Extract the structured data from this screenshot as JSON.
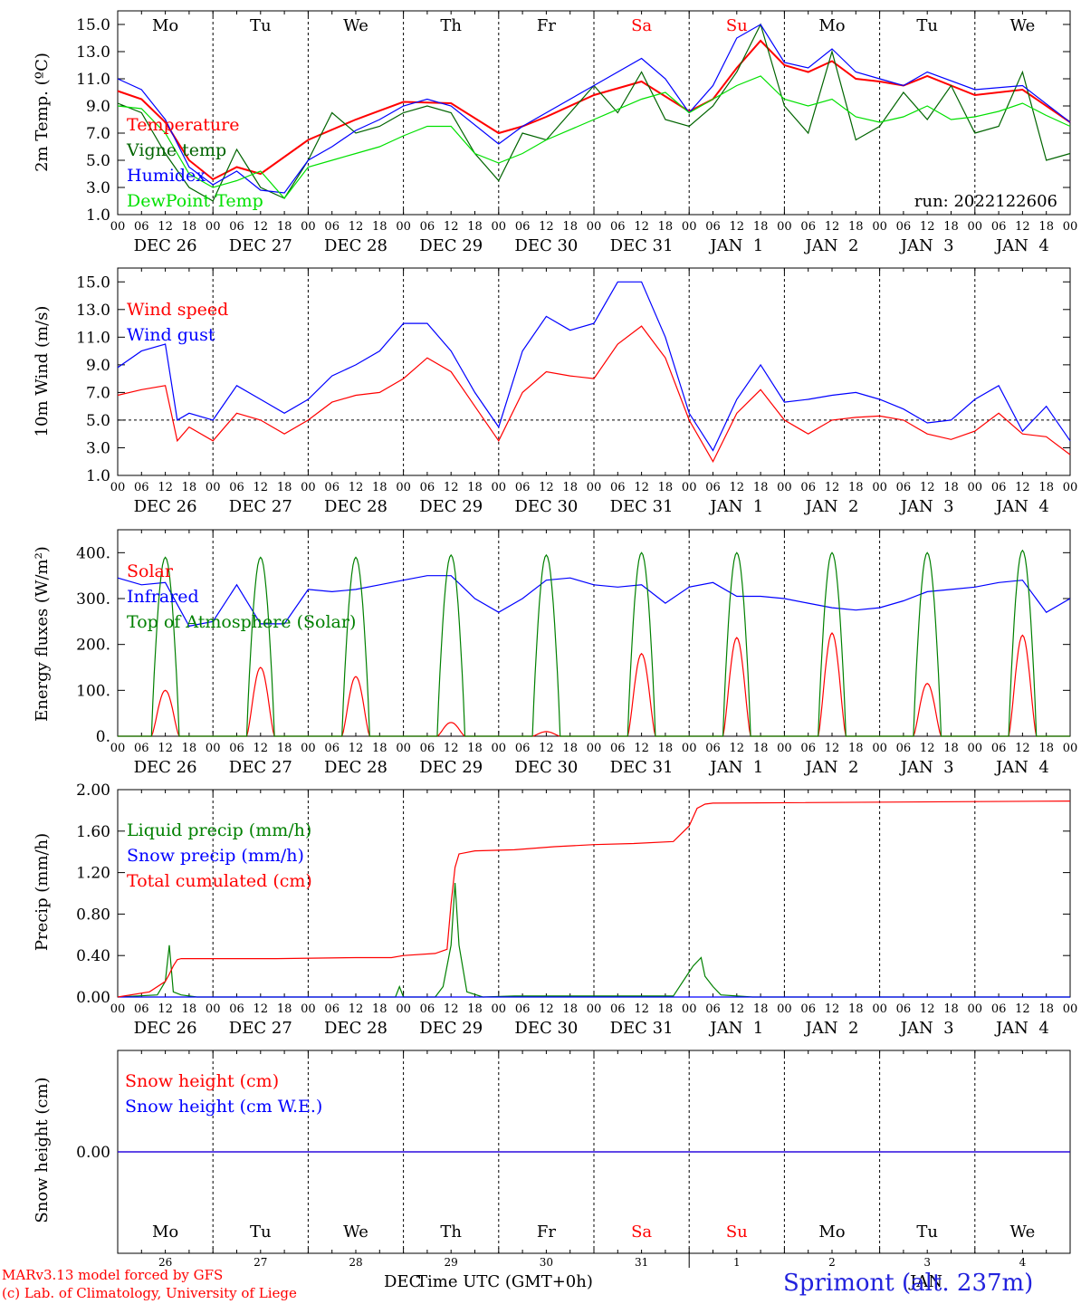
{
  "days": {
    "weekday_labels": [
      "Mo",
      "Tu",
      "We",
      "Th",
      "Fr",
      "Sa",
      "Su",
      "Mo",
      "Tu",
      "We"
    ],
    "weekend_color": "#ff0000",
    "weekday_color": "#000000",
    "date_labels": [
      "DEC 26",
      "DEC 27",
      "DEC 28",
      "DEC 29",
      "DEC 30",
      "DEC 31",
      "JAN  1",
      "JAN  2",
      "JAN  3",
      "JAN  4"
    ],
    "hour_labels": [
      "00",
      "06",
      "12",
      "18"
    ],
    "final_hour_label": "00",
    "snow_panel_day_numbers": [
      "26",
      "27",
      "28",
      "29",
      "30",
      "31",
      "1",
      "2",
      "3",
      "4"
    ]
  },
  "chart_data": [
    {
      "type": "line",
      "id": "temperature",
      "ylabel": "2m Temp. (ºC)",
      "ylim": [
        1.0,
        16.0
      ],
      "yticks": [
        "1.0",
        "3.0",
        "5.0",
        "7.0",
        "9.0",
        "11.0",
        "13.0",
        "15.0"
      ],
      "run_label": "run: 2022122606",
      "x_unit": "hours since DEC 26 00 UTC",
      "series": [
        {
          "name": "Temperature",
          "color": "#ff0000",
          "x": [
            0,
            6,
            12,
            18,
            24,
            30,
            36,
            48,
            60,
            72,
            84,
            96,
            102,
            108,
            120,
            132,
            144,
            150,
            156,
            162,
            168,
            174,
            180,
            186,
            192,
            198,
            204,
            216,
            228,
            240
          ],
          "values": [
            10.1,
            9.5,
            7.8,
            5.0,
            3.6,
            4.5,
            4.0,
            6.5,
            8.0,
            9.3,
            9.2,
            7.0,
            7.5,
            8.2,
            9.8,
            10.8,
            8.6,
            9.5,
            11.8,
            13.8,
            12.0,
            11.5,
            12.3,
            11.0,
            10.8,
            10.5,
            11.2,
            9.8,
            10.2,
            7.8
          ]
        },
        {
          "name": "Vigne temp",
          "color": "#006400",
          "x": [
            0,
            6,
            12,
            18,
            24,
            30,
            36,
            42,
            48,
            54,
            60,
            66,
            72,
            78,
            84,
            90,
            96,
            102,
            108,
            114,
            120,
            126,
            132,
            138,
            144,
            150,
            156,
            162,
            168,
            174,
            180,
            186,
            192,
            198,
            204,
            210,
            216,
            222,
            228,
            234,
            240
          ],
          "values": [
            9.2,
            8.5,
            5.5,
            3.0,
            2.0,
            5.8,
            3.0,
            2.2,
            5.0,
            8.5,
            7.0,
            7.5,
            8.5,
            9.0,
            8.5,
            5.5,
            3.5,
            7.0,
            6.5,
            8.5,
            10.5,
            8.5,
            11.5,
            8.0,
            7.5,
            9.0,
            11.5,
            15.0,
            9.0,
            7.0,
            13.0,
            6.5,
            7.5,
            10.0,
            8.0,
            10.5,
            7.0,
            7.5,
            11.5,
            5.0,
            5.5
          ]
        },
        {
          "name": "Humidex",
          "color": "#0000ff",
          "x": [
            0,
            6,
            12,
            18,
            24,
            30,
            36,
            42,
            48,
            54,
            60,
            66,
            72,
            78,
            84,
            96,
            102,
            108,
            120,
            132,
            138,
            144,
            150,
            156,
            162,
            168,
            174,
            180,
            186,
            192,
            198,
            204,
            216,
            228,
            240
          ],
          "values": [
            11.0,
            10.2,
            8.0,
            4.5,
            3.2,
            4.2,
            2.8,
            2.6,
            5.0,
            6.0,
            7.2,
            8.0,
            9.0,
            9.5,
            9.0,
            6.2,
            7.5,
            8.5,
            10.5,
            12.5,
            11.0,
            8.5,
            10.5,
            14.0,
            15.0,
            12.2,
            11.8,
            13.2,
            11.5,
            11.0,
            10.5,
            11.5,
            10.2,
            10.5,
            7.8
          ]
        },
        {
          "name": "DewPoint Temp",
          "color": "#00e000",
          "x": [
            0,
            6,
            12,
            18,
            24,
            30,
            36,
            42,
            48,
            54,
            60,
            66,
            72,
            78,
            84,
            90,
            96,
            102,
            108,
            120,
            132,
            138,
            144,
            150,
            156,
            162,
            168,
            174,
            180,
            186,
            192,
            198,
            204,
            210,
            216,
            222,
            228,
            234,
            240
          ],
          "values": [
            9.0,
            8.8,
            7.0,
            4.0,
            3.0,
            3.5,
            4.2,
            2.2,
            4.5,
            5.0,
            5.5,
            6.0,
            6.8,
            7.5,
            7.5,
            5.5,
            4.8,
            5.5,
            6.5,
            8.0,
            9.5,
            10.0,
            8.5,
            9.5,
            10.5,
            11.2,
            9.5,
            9.0,
            9.5,
            8.2,
            7.8,
            8.2,
            9.0,
            8.0,
            8.2,
            8.6,
            9.2,
            8.3,
            7.5
          ]
        }
      ]
    },
    {
      "type": "line",
      "id": "wind",
      "ylabel": "10m Wind (m/s)",
      "ylim": [
        1.0,
        16.0
      ],
      "yticks": [
        "1.0",
        "3.0",
        "5.0",
        "7.0",
        "9.0",
        "11.0",
        "13.0",
        "15.0"
      ],
      "reference_line": 5.0,
      "x_unit": "hours since DEC 26 00 UTC",
      "series": [
        {
          "name": "Wind speed",
          "color": "#ff0000",
          "x": [
            0,
            6,
            12,
            15,
            18,
            24,
            30,
            36,
            42,
            48,
            54,
            60,
            66,
            72,
            78,
            84,
            90,
            96,
            102,
            108,
            114,
            120,
            126,
            132,
            138,
            144,
            150,
            156,
            162,
            168,
            174,
            180,
            186,
            192,
            198,
            204,
            210,
            216,
            222,
            228,
            234,
            240
          ],
          "values": [
            6.8,
            7.2,
            7.5,
            3.5,
            4.5,
            3.5,
            5.5,
            5.0,
            4.0,
            5.0,
            6.3,
            6.8,
            7.0,
            8.0,
            9.5,
            8.5,
            6.0,
            3.5,
            7.0,
            8.5,
            8.2,
            8.0,
            10.5,
            11.8,
            9.5,
            5.0,
            2.0,
            5.5,
            7.2,
            5.0,
            4.0,
            5.0,
            5.2,
            5.3,
            5.0,
            4.0,
            3.6,
            4.2,
            5.5,
            4.0,
            3.8,
            2.5
          ]
        },
        {
          "name": "Wind gust",
          "color": "#0000ff",
          "x": [
            0,
            6,
            12,
            15,
            18,
            24,
            30,
            36,
            42,
            48,
            54,
            60,
            66,
            72,
            78,
            84,
            90,
            96,
            102,
            108,
            114,
            120,
            126,
            132,
            138,
            144,
            150,
            156,
            162,
            168,
            174,
            180,
            186,
            192,
            198,
            204,
            210,
            216,
            222,
            228,
            234,
            240
          ],
          "values": [
            8.8,
            10.0,
            10.5,
            5.0,
            5.5,
            5.0,
            7.5,
            6.5,
            5.5,
            6.5,
            8.2,
            9.0,
            10.0,
            12.0,
            12.0,
            10.0,
            7.0,
            4.5,
            10.0,
            12.5,
            11.5,
            12.0,
            15.0,
            15.0,
            11.0,
            5.5,
            2.8,
            6.5,
            9.0,
            6.3,
            6.5,
            6.8,
            7.0,
            6.5,
            5.8,
            4.8,
            5.0,
            6.5,
            7.5,
            4.2,
            6.0,
            3.5
          ]
        }
      ]
    },
    {
      "type": "line",
      "id": "energy",
      "ylabel": "Energy fluxes (W/m²)",
      "ylim": [
        0,
        450
      ],
      "yticks": [
        "0.",
        "100.",
        "200.",
        "300.",
        "400."
      ],
      "x_unit": "hours since DEC 26 00 UTC",
      "daylight_window_hours": [
        8.5,
        15.5
      ],
      "series": [
        {
          "name": "Solar",
          "color": "#ff0000",
          "daily_peak": [
            100,
            150,
            130,
            30,
            10,
            180,
            215,
            225,
            115,
            220
          ]
        },
        {
          "name": "Infrared",
          "color": "#0000ff",
          "x": [
            0,
            6,
            12,
            18,
            24,
            30,
            36,
            42,
            48,
            54,
            60,
            66,
            72,
            78,
            84,
            90,
            96,
            102,
            108,
            114,
            120,
            126,
            132,
            138,
            144,
            150,
            156,
            162,
            168,
            174,
            180,
            186,
            192,
            198,
            204,
            210,
            216,
            222,
            228,
            234,
            240
          ],
          "values": [
            345,
            330,
            335,
            240,
            250,
            330,
            245,
            245,
            320,
            315,
            320,
            330,
            340,
            350,
            350,
            300,
            270,
            300,
            340,
            345,
            330,
            325,
            330,
            290,
            325,
            335,
            305,
            305,
            300,
            290,
            280,
            275,
            280,
            295,
            315,
            320,
            325,
            335,
            340,
            270,
            300
          ]
        },
        {
          "name": "Top of Atmosphere (Solar)",
          "color": "#008000",
          "daily_peak": [
            390,
            390,
            390,
            395,
            395,
            400,
            400,
            400,
            400,
            405
          ]
        }
      ]
    },
    {
      "type": "line",
      "id": "precip",
      "ylabel": "Precip (mm/h)",
      "ylim": [
        0.0,
        2.0
      ],
      "yticks": [
        "0.00",
        "0.40",
        "0.80",
        "1.20",
        "1.60",
        "2.00"
      ],
      "x_unit": "hours since DEC 26 00 UTC",
      "series": [
        {
          "name": "Liquid precip (mm/h)",
          "color": "#008000",
          "x": [
            0,
            10,
            12,
            13,
            14,
            16,
            20,
            70,
            71,
            72,
            80,
            82,
            84,
            85,
            86,
            88,
            92,
            100,
            120,
            140,
            145,
            147,
            148,
            150,
            152,
            160,
            240
          ],
          "values": [
            0,
            0.02,
            0.15,
            0.5,
            0.05,
            0.02,
            0,
            0,
            0.1,
            0,
            0,
            0.1,
            0.5,
            1.1,
            0.5,
            0.05,
            0,
            0.01,
            0.01,
            0.01,
            0.3,
            0.38,
            0.2,
            0.1,
            0.02,
            0,
            0
          ]
        },
        {
          "name": "Snow precip (mm/h)",
          "color": "#0000ff",
          "x": [
            0,
            240
          ],
          "values": [
            0,
            0
          ]
        },
        {
          "name": "Total cumulated (cm)",
          "color": "#ff0000",
          "x": [
            0,
            8,
            12,
            13,
            14,
            15,
            16,
            40,
            60,
            69,
            72,
            80,
            83,
            84,
            85,
            86,
            90,
            100,
            110,
            120,
            130,
            140,
            144,
            146,
            148,
            150,
            240
          ],
          "values": [
            0,
            0.05,
            0.15,
            0.22,
            0.3,
            0.36,
            0.37,
            0.37,
            0.38,
            0.38,
            0.4,
            0.42,
            0.46,
            0.9,
            1.25,
            1.38,
            1.41,
            1.42,
            1.45,
            1.47,
            1.48,
            1.5,
            1.65,
            1.82,
            1.86,
            1.87,
            1.89
          ]
        }
      ]
    },
    {
      "type": "line",
      "id": "snow",
      "ylabel": "Snow height (cm)",
      "ylim": [
        -1,
        1
      ],
      "yticks": [
        "0.00"
      ],
      "x_unit": "hours since DEC 26 00 UTC",
      "series": [
        {
          "name": "Snow height (cm)",
          "color": "#ff0000",
          "x": [
            0,
            240
          ],
          "values": [
            0,
            0
          ]
        },
        {
          "name": "Snow height (cm W.E.)",
          "color": "#0000ff",
          "x": [
            0,
            240
          ],
          "values": [
            0,
            0
          ]
        }
      ]
    }
  ],
  "footer": {
    "credit_line1": "MARv3.13 model forced by GFS",
    "credit_line2": "(c) Lab. of Climatology, University of Liege",
    "xlabel_prefix": "DEC",
    "xlabel": "Time UTC (GMT+0h)",
    "xlabel_suffix": "JAN",
    "station": "Sprimont (alt. 237m)",
    "credit_color": "#ff0000",
    "station_color": "#2222dd"
  }
}
